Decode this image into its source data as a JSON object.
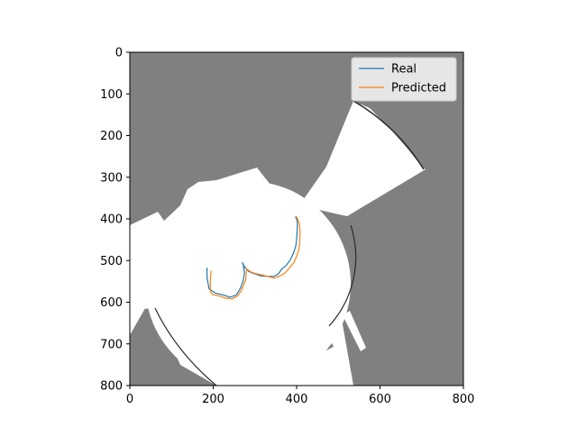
{
  "chart_data": {
    "type": "line",
    "title": "",
    "xlabel": "",
    "ylabel": "",
    "xlim": [
      0,
      800
    ],
    "ylim": [
      800,
      0
    ],
    "y_inverted": true,
    "x_ticks": [
      "0",
      "200",
      "400",
      "600",
      "800"
    ],
    "y_ticks": [
      "0",
      "100",
      "200",
      "300",
      "400",
      "500",
      "600",
      "700",
      "800"
    ],
    "grid": false,
    "legend_position": "upper right",
    "background": "occupancy map (gray unknown, white free space)",
    "colors": {
      "unknown": "#808080",
      "free": "#ffffff",
      "wall": "#2b2b2b"
    },
    "series": [
      {
        "name": "Real",
        "color": "#1f77b4",
        "x": [
          185,
          185,
          190,
          205,
          225,
          240,
          255,
          262,
          268,
          272,
          275,
          272,
          270,
          275,
          285,
          300,
          315,
          330,
          345,
          355,
          365,
          375,
          385,
          392,
          398,
          400,
          401,
          402,
          400,
          397
        ],
        "y": [
          517,
          540,
          568,
          578,
          583,
          588,
          583,
          572,
          560,
          547,
          530,
          510,
          505,
          515,
          526,
          532,
          537,
          538,
          538,
          533,
          520,
          512,
          498,
          483,
          465,
          450,
          430,
          410,
          400,
          395
        ]
      },
      {
        "name": "Predicted",
        "color": "#ff7f0e",
        "x": [
          195,
          193,
          193,
          200,
          215,
          230,
          245,
          258,
          267,
          273,
          278,
          279,
          280,
          288,
          300,
          315,
          330,
          345,
          360,
          372,
          382,
          393,
          400,
          405,
          407,
          408,
          408,
          406,
          402,
          399
        ],
        "y": [
          524,
          545,
          575,
          582,
          585,
          590,
          592,
          585,
          573,
          558,
          545,
          532,
          520,
          526,
          531,
          534,
          538,
          542,
          537,
          530,
          518,
          505,
          490,
          475,
          460,
          445,
          425,
          410,
          400,
          393
        ]
      }
    ]
  }
}
